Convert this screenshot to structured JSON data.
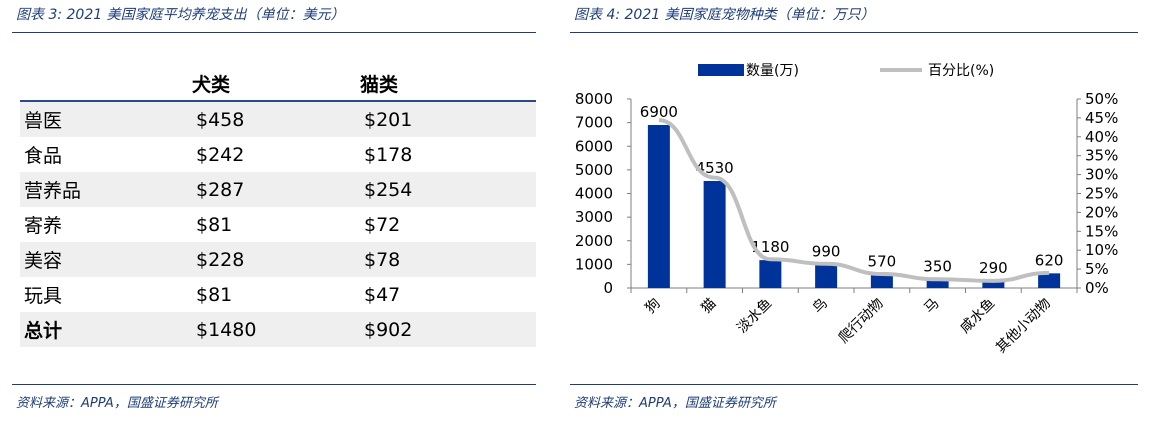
{
  "left": {
    "title": "图表 3:  2021 美国家庭平均养宠支出（单位：美元）",
    "table": {
      "headers": [
        "",
        "犬类",
        "猫类"
      ],
      "rows": [
        [
          "兽医",
          "$458",
          "$201"
        ],
        [
          "食品",
          "$242",
          "$178"
        ],
        [
          "营养品",
          "$287",
          "$254"
        ],
        [
          "寄养",
          "$81",
          "$72"
        ],
        [
          "美容",
          "$228",
          "$78"
        ],
        [
          "玩具",
          "$81",
          "$47"
        ],
        [
          "总计",
          "$1480",
          "$902"
        ]
      ]
    },
    "source": "资料来源：APPA，国盛证券研究所"
  },
  "right": {
    "title": "图表 4:  2021 美国家庭宠物种类（单位：万只）",
    "source": "资料来源：APPA，国盛证券研究所"
  },
  "chart_data": {
    "type": "bar",
    "title": "",
    "categories": [
      "狗",
      "猫",
      "淡水鱼",
      "鸟",
      "爬行动物",
      "马",
      "咸水鱼",
      "其他小动物"
    ],
    "series": [
      {
        "name": "数量(万)",
        "type": "bar",
        "axis": "left",
        "values": [
          6900,
          4530,
          1180,
          990,
          570,
          350,
          290,
          620
        ],
        "color": "#003399"
      },
      {
        "name": "百分比(%)",
        "type": "line",
        "axis": "right",
        "values": [
          44.4,
          29.2,
          7.6,
          6.4,
          3.7,
          2.3,
          1.9,
          4.0
        ],
        "color": "#bfbfbf"
      }
    ],
    "ylim": [
      0,
      8000
    ],
    "yticks": [
      "0",
      "1000",
      "2000",
      "3000",
      "4000",
      "5000",
      "6000",
      "7000",
      "8000"
    ],
    "y2lim": [
      0,
      50
    ],
    "y2ticks": [
      "0%",
      "5%",
      "10%",
      "15%",
      "20%",
      "25%",
      "30%",
      "35%",
      "40%",
      "45%",
      "50%"
    ],
    "data_labels": [
      "6900",
      "4530",
      "1180",
      "990",
      "570",
      "350",
      "290",
      "620"
    ],
    "legend": "top",
    "grid": false
  }
}
